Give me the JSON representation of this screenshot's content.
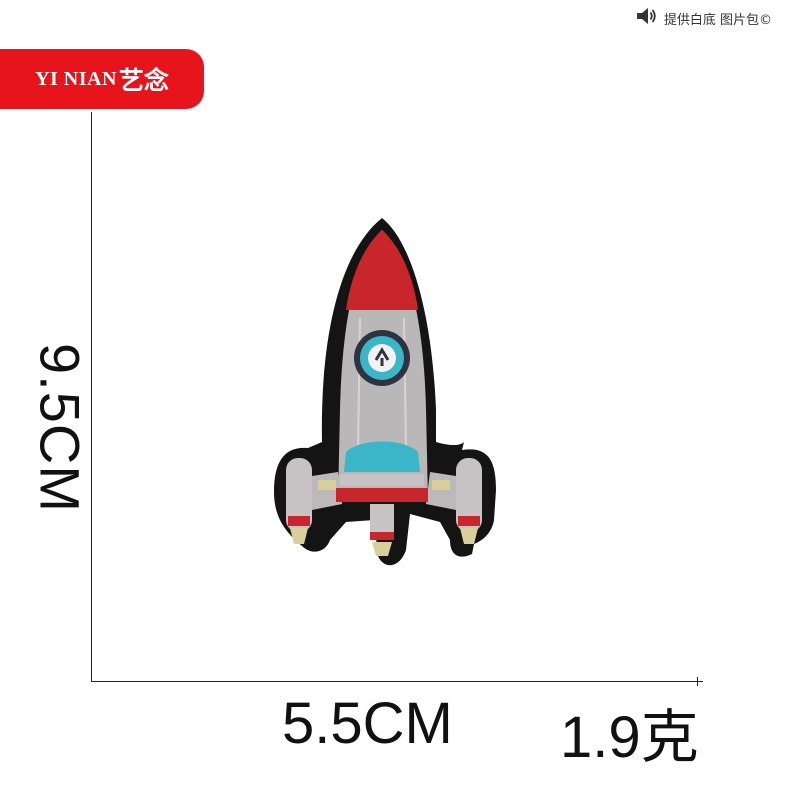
{
  "brand": {
    "name_en": "YI NIAN",
    "name_cn": "艺念",
    "color": "#e8141c"
  },
  "notice": {
    "icon": "speaker-icon",
    "text": "提供白底 图片包©"
  },
  "dimensions": {
    "height": "9.5CM",
    "width": "5.5CM",
    "weight": "1.9克"
  },
  "product": {
    "image": "rocket-embroidered-patch",
    "colors": {
      "nose": "#c8262a",
      "body": "#b9b7b7",
      "window": "#3bb6c9",
      "outline": "#141414"
    }
  }
}
